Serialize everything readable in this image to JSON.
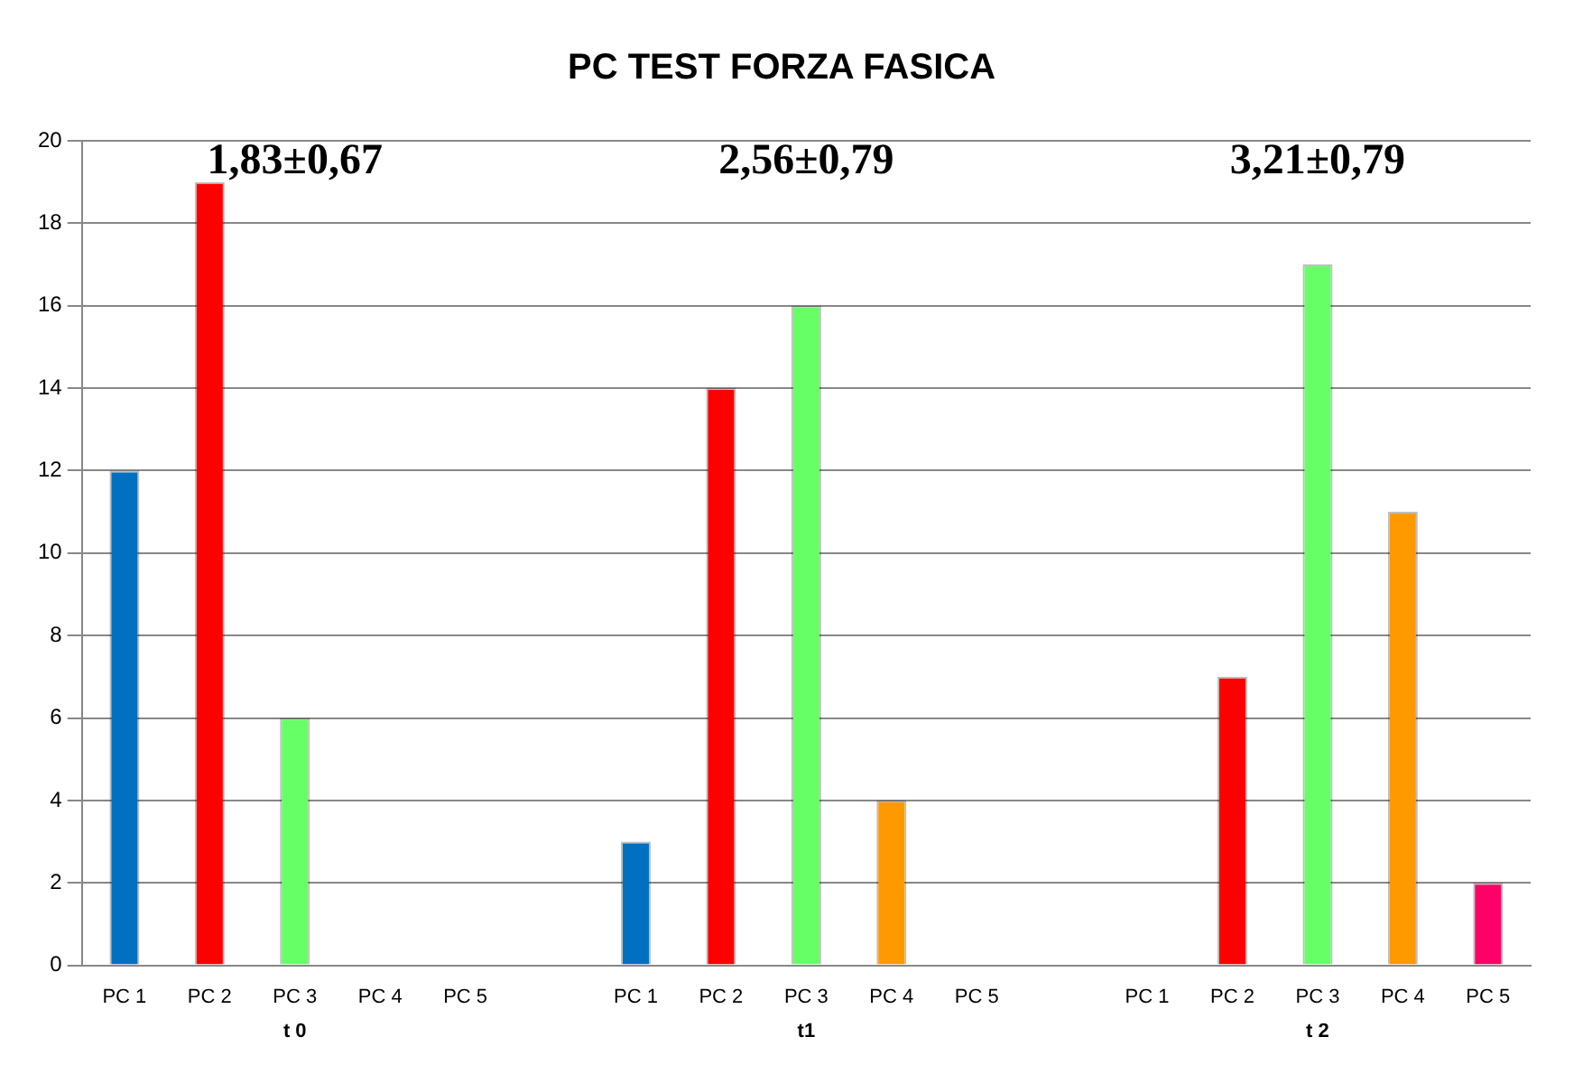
{
  "chart_data": {
    "type": "bar",
    "title": "PC TEST FORZA FASICA",
    "categories": [
      "PC 1",
      "PC 2",
      "PC 3",
      "PC 4",
      "PC 5",
      "PC 1",
      "PC 2",
      "PC 3",
      "PC 4",
      "PC 5",
      "PC 1",
      "PC 2",
      "PC 3",
      "PC 4",
      "PC 5"
    ],
    "values": [
      12,
      19,
      6,
      0,
      0,
      3,
      14,
      16,
      4,
      0,
      0,
      7,
      17,
      11,
      2
    ],
    "colors": [
      "#0070c0",
      "#ff0000",
      "#66ff66",
      "#ff9900",
      "#ff0066",
      "#0070c0",
      "#ff0000",
      "#66ff66",
      "#ff9900",
      "#ff0066",
      "#0070c0",
      "#ff0000",
      "#66ff66",
      "#ff9900",
      "#ff0066"
    ],
    "ylim": [
      0,
      20
    ],
    "yticks": [
      0,
      2,
      4,
      6,
      8,
      10,
      12,
      14,
      16,
      18,
      20
    ],
    "grid": "y",
    "legend": false,
    "annotations": [
      "t 0",
      "t1",
      "t 2",
      "1,83±0,67",
      "2,56±0,79",
      "3,21±0,79"
    ]
  }
}
